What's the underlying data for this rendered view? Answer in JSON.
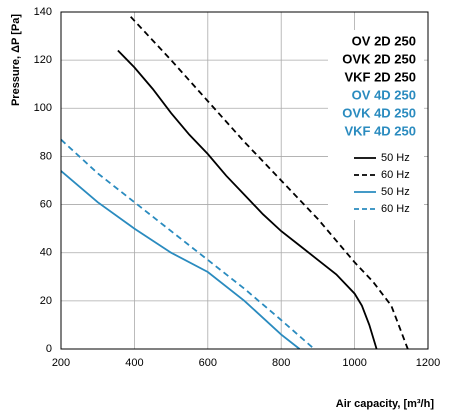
{
  "chart_data": {
    "type": "line",
    "x_label": "Air capacity, [m³/h]",
    "y_label": "Pressure, ΔP [Pa]",
    "xlim": [
      200,
      1200
    ],
    "xticks": [
      200,
      400,
      600,
      800,
      1000,
      1200
    ],
    "ylim": [
      0,
      140
    ],
    "yticks": [
      0,
      20,
      40,
      60,
      80,
      100,
      120,
      140
    ],
    "grid": true,
    "legend": "top-right",
    "model_groups": [
      {
        "color": "#000000",
        "labels": [
          "OV 2D 250",
          "OVK 2D 250",
          "VKF 2D 250"
        ]
      },
      {
        "color": "#2a8bbf",
        "labels": [
          "OV 4D 250",
          "OVK 4D 250",
          "VKF 4D 250"
        ]
      }
    ],
    "series": [
      {
        "name": "50 Hz",
        "color": "#000000",
        "dashed": false,
        "x": [
          355,
          400,
          450,
          500,
          550,
          600,
          650,
          700,
          750,
          800,
          850,
          900,
          950,
          1000,
          1020,
          1040,
          1060
        ],
        "values": [
          124,
          117,
          108,
          98,
          89,
          81,
          72,
          64,
          56,
          49,
          43,
          37,
          31,
          23,
          18,
          10,
          0
        ]
      },
      {
        "name": "60 Hz",
        "color": "#000000",
        "dashed": true,
        "x": [
          390,
          500,
          600,
          700,
          800,
          900,
          1000,
          1050,
          1100,
          1145
        ],
        "values": [
          138,
          120,
          103,
          86,
          70,
          54,
          36,
          28,
          18,
          0
        ]
      },
      {
        "name": "50 Hz",
        "color": "#2a8bbf",
        "dashed": false,
        "x": [
          200,
          300,
          400,
          500,
          600,
          700,
          800,
          850
        ],
        "values": [
          74,
          61,
          50,
          40,
          32,
          20,
          6,
          0
        ]
      },
      {
        "name": "60 Hz",
        "color": "#2a8bbf",
        "dashed": true,
        "x": [
          200,
          300,
          400,
          500,
          600,
          700,
          800,
          890
        ],
        "values": [
          87,
          73,
          61,
          49,
          37,
          25,
          12,
          0
        ]
      }
    ]
  }
}
